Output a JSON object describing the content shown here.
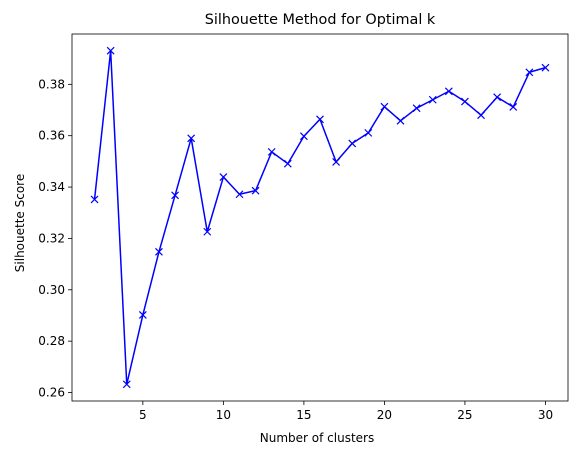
{
  "chart_data": {
    "type": "line",
    "title": "Silhouette Method for Optimal k",
    "xlabel": "Number of clusters",
    "ylabel": "Silhouette Score",
    "x": [
      2,
      3,
      4,
      5,
      6,
      7,
      8,
      9,
      10,
      11,
      12,
      13,
      14,
      15,
      16,
      17,
      18,
      19,
      20,
      21,
      22,
      23,
      24,
      25,
      26,
      27,
      28,
      29,
      30
    ],
    "series": [
      {
        "values": [
          0.3352,
          0.3931,
          0.2632,
          0.2902,
          0.3148,
          0.3368,
          0.359,
          0.3226,
          0.3439,
          0.3372,
          0.3386,
          0.3537,
          0.3491,
          0.3598,
          0.3664,
          0.3498,
          0.357,
          0.3611,
          0.3713,
          0.3658,
          0.3707,
          0.374,
          0.3773,
          0.3733,
          0.368,
          0.375,
          0.3712,
          0.3847,
          0.3865
        ],
        "color": "#0000ff",
        "marker": "x"
      }
    ],
    "xlim": [
      0.6,
      31.4
    ],
    "ylim": [
      0.2567,
      0.3996
    ],
    "xticks": [
      5,
      10,
      15,
      20,
      25,
      30
    ],
    "xtick_labels": [
      "5",
      "10",
      "15",
      "20",
      "25",
      "30"
    ],
    "yticks": [
      0.26,
      0.28,
      0.3,
      0.32,
      0.34,
      0.36,
      0.38
    ],
    "ytick_labels": [
      "0.26",
      "0.28",
      "0.30",
      "0.32",
      "0.34",
      "0.36",
      "0.38"
    ],
    "grid": false,
    "legend": "none"
  }
}
